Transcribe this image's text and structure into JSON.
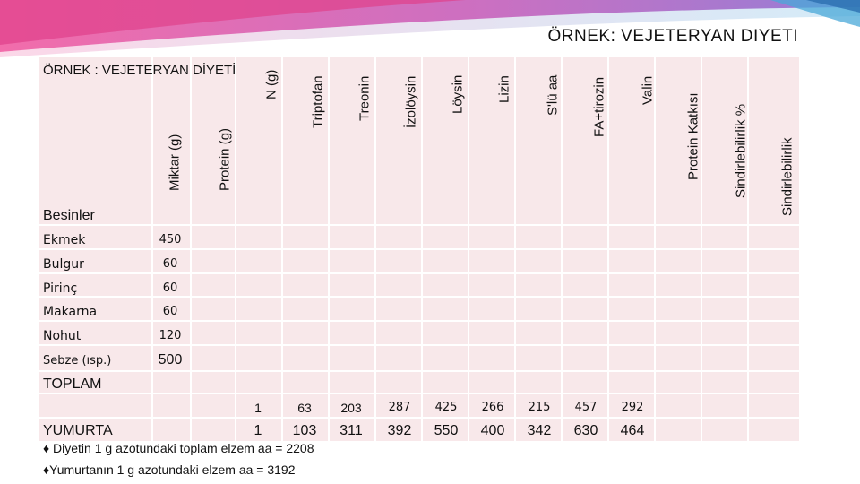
{
  "slide_title": "ÖRNEK: VEJETERYAN DIYETI",
  "table": {
    "title": "ÖRNEK : VEJETERYAN DİYETİ",
    "section_label": "Besinler",
    "total_label": "TOPLAM",
    "columns": [
      "Miktar (g)",
      "Protein (g)",
      "N (g)",
      "Triptofan",
      "Treonin",
      "İzolöysin",
      "Löysin",
      "Lizin",
      "S'lü aa",
      "FA+tirozin",
      "Valin",
      "Protein Katkısı",
      "Sindirlebilirlik %",
      "Sindirlebilirlik"
    ],
    "foods": [
      {
        "name": "Ekmek",
        "amount": "450"
      },
      {
        "name": "Bulgur",
        "amount": "60"
      },
      {
        "name": "Pirinç",
        "amount": "60"
      },
      {
        "name": "Makarna",
        "amount": "60"
      },
      {
        "name": "Nohut",
        "amount": "120"
      },
      {
        "name": "Sebze (ısp.)",
        "amount": "500"
      }
    ],
    "total_row": [
      "1",
      "63",
      "203",
      "287",
      "425",
      "266",
      "215",
      "457",
      "292"
    ],
    "yumurta_row": {
      "label": "YUMURTA",
      "values": [
        "1",
        "103",
        "311",
        "392",
        "550",
        "400",
        "342",
        "630",
        "464"
      ]
    }
  },
  "notes": [
    "♦ Diyetin 1 g azotundaki toplam elzem aa = 2208",
    "♦Yumurtanın 1 g azotundaki elzem aa = 3192"
  ],
  "colors": {
    "table_bg": "#f8e8ea",
    "accent_pink": "#e0408a",
    "accent_blue": "#4aa8d8",
    "accent_purple": "#7a4fb5"
  }
}
